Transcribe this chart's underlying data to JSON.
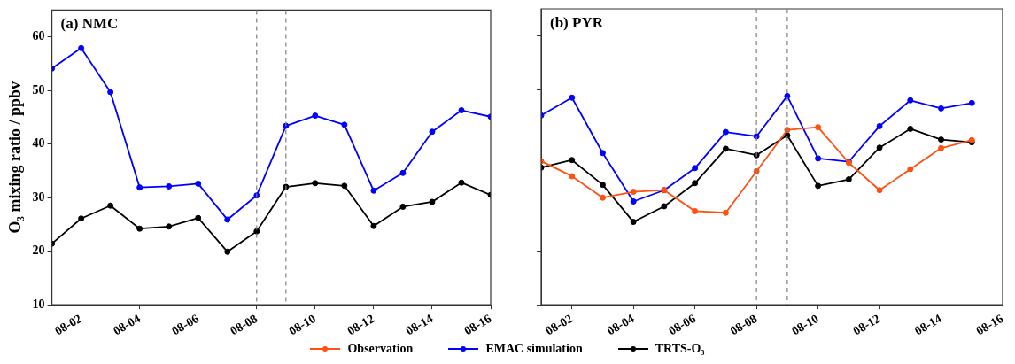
{
  "chart_data": [
    {
      "type": "line",
      "title": "(a) NMC",
      "ylabel": "O₃ mixing ratio / ppbv",
      "x": [
        "--08-01",
        "--08-02",
        "--08-03",
        "--08-04",
        "--08-05",
        "--08-06",
        "--08-07",
        "--08-08",
        "--08-09",
        "--08-10",
        "--08-11",
        "--08-12",
        "--08-13",
        "--08-14",
        "--08-15",
        "--08-16"
      ],
      "series": [
        {
          "name": "EMAC simulation",
          "color": "#0000ff",
          "values": [
            54.1,
            57.9,
            49.7,
            31.9,
            32.1,
            32.6,
            25.9,
            30.4,
            43.4,
            45.3,
            43.6,
            31.3,
            34.6,
            42.3,
            46.3,
            45.1
          ]
        },
        {
          "name": "TRTS-O₃",
          "color": "#000000",
          "values": [
            21.4,
            26.1,
            28.5,
            24.2,
            24.6,
            26.2,
            19.9,
            23.7,
            32.0,
            32.7,
            32.2,
            24.7,
            28.3,
            29.2,
            32.8,
            30.5
          ]
        }
      ],
      "xlim": [
        "--08-01",
        "--08-16"
      ],
      "xticks": [
        {
          "value": "--08-02",
          "label": "08-02"
        },
        {
          "value": "--08-04",
          "label": "08-04"
        },
        {
          "value": "--08-06",
          "label": "08-06"
        },
        {
          "value": "--08-08",
          "label": "08-08"
        },
        {
          "value": "--08-10",
          "label": "08-10"
        },
        {
          "value": "--08-12",
          "label": "08-12"
        },
        {
          "value": "--08-14",
          "label": "08-14"
        },
        {
          "value": "--08-16",
          "label": "08-16"
        }
      ],
      "ylim": [
        10,
        65
      ],
      "yticks": [
        10,
        20,
        30,
        40,
        50,
        60
      ],
      "ref_lines": [
        {
          "axis": "x",
          "value": "--08-08",
          "color": "#808080",
          "line_style": "dashed"
        },
        {
          "axis": "x",
          "value": "--08-09",
          "color": "#808080",
          "line_style": "dashed"
        }
      ],
      "grid": false,
      "legend": "bottom",
      "marker": "circle",
      "line_style": "solid"
    },
    {
      "type": "line",
      "title": "(b) PYR",
      "x": [
        "--08-01",
        "--08-02",
        "--08-03",
        "--08-04",
        "--08-05",
        "--08-06",
        "--08-07",
        "--08-08",
        "--08-09",
        "--08-10",
        "--08-11",
        "--08-12",
        "--08-13",
        "--08-14",
        "--08-15"
      ],
      "series": [
        {
          "name": "Observation",
          "color": "#ff5010",
          "values": [
            36.7,
            33.9,
            29.9,
            31.0,
            31.3,
            27.4,
            27.1,
            34.8,
            42.5,
            43.0,
            36.4,
            31.3,
            35.2,
            39.1,
            40.6
          ]
        },
        {
          "name": "EMAC simulation",
          "color": "#0000ff",
          "values": [
            45.2,
            48.5,
            38.2,
            29.2,
            31.3,
            35.4,
            42.1,
            41.3,
            48.8,
            37.2,
            36.6,
            43.2,
            48.0,
            46.5,
            47.5
          ]
        },
        {
          "name": "TRTS-O₃",
          "color": "#000000",
          "values": [
            35.5,
            36.9,
            32.3,
            25.4,
            28.3,
            32.6,
            39.0,
            37.8,
            41.5,
            32.1,
            33.3,
            39.2,
            42.7,
            40.7,
            40.2
          ]
        }
      ],
      "xlim": [
        "--08-01",
        "--08-16"
      ],
      "xticks": [
        {
          "value": "--08-02",
          "label": "08-02"
        },
        {
          "value": "--08-04",
          "label": "08-04"
        },
        {
          "value": "--08-06",
          "label": "08-06"
        },
        {
          "value": "--08-08",
          "label": "08-08"
        },
        {
          "value": "--08-10",
          "label": "08-10"
        },
        {
          "value": "--08-12",
          "label": "08-12"
        },
        {
          "value": "--08-14",
          "label": "08-14"
        },
        {
          "value": "--08-16",
          "label": "08-16"
        }
      ],
      "ylim": [
        10,
        65
      ],
      "yticks": [
        10,
        20,
        30,
        40,
        50,
        60
      ],
      "tick_labels": "x",
      "ref_lines": [
        {
          "axis": "x",
          "value": "--08-08",
          "color": "#808080",
          "line_style": "dashed"
        },
        {
          "axis": "x",
          "value": "--08-09",
          "color": "#808080",
          "line_style": "dashed"
        }
      ],
      "grid": false,
      "legend": "bottom",
      "marker": "circle",
      "line_style": "solid"
    }
  ]
}
